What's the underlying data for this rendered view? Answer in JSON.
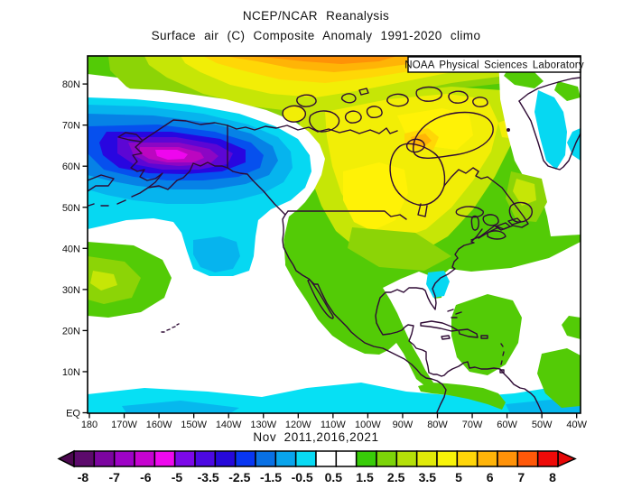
{
  "header": {
    "title": "NCEP/NCAR Reanalysis",
    "subtitle": "Surface air (C) Composite Anomaly 1991-2020 climo",
    "credit": "NOAA Physical Sciences Laboratory"
  },
  "caption": "Nov 2011,2016,2021",
  "axes": {
    "lat_labels": [
      "EQ",
      "10N",
      "20N",
      "30N",
      "40N",
      "50N",
      "60N",
      "70N",
      "80N"
    ],
    "lon_labels": [
      "180",
      "170W",
      "160W",
      "150W",
      "140W",
      "130W",
      "120W",
      "110W",
      "100W",
      "90W",
      "80W",
      "70W",
      "60W",
      "50W",
      "40W"
    ]
  },
  "colorbar": {
    "tick_labels": [
      "-8",
      "-7",
      "-6",
      "-5",
      "-3.5",
      "-2.5",
      "-1.5",
      "-0.5",
      "0.5",
      "1.5",
      "2.5",
      "3.5",
      "5",
      "6",
      "7",
      "8"
    ],
    "left_arrow_color": "#4c0850",
    "right_arrow_color": "#e60808",
    "cell_colors": [
      "#5c0a6c",
      "#7c05a0",
      "#9e03c6",
      "#c603d0",
      "#ee08ee",
      "#7c08e8",
      "#4c08e2",
      "#2608da",
      "#0836f2",
      "#0870e4",
      "#08a4ec",
      "#08daf4",
      "#ffffff",
      "#ffffff",
      "#38cc08",
      "#7cd408",
      "#b4e008",
      "#e0ea08",
      "#f8f408",
      "#ffd608",
      "#ffb408",
      "#ff9208",
      "#ff5808",
      "#ee0a08"
    ]
  },
  "palette": {
    "land_outline": "#2e0a34",
    "green_base": "#53cb06",
    "green_light": "#8cd406",
    "yellow_green": "#c6e606",
    "yellow": "#f2ee06",
    "yellow_bright": "#fff206",
    "gold": "#ffd706",
    "orange": "#ffb406",
    "orange_deep": "#ff9206",
    "cyan": "#06d8f2",
    "magenta_core": "#ee06ee"
  },
  "chart_data": {
    "type": "heatmap",
    "title": "NCEP/NCAR Reanalysis",
    "subtitle": "Surface air (C) Composite Anomaly 1991-2020 climo",
    "variable": "Surface air temperature anomaly",
    "units": "C",
    "composite": {
      "month": "Nov",
      "years": [
        2011,
        2016,
        2021
      ],
      "climatology": "1991-2020"
    },
    "xlabel_ticks": [
      "180",
      "170W",
      "160W",
      "150W",
      "140W",
      "130W",
      "120W",
      "110W",
      "100W",
      "90W",
      "80W",
      "70W",
      "60W",
      "50W",
      "40W"
    ],
    "ylabel_ticks": [
      "EQ",
      "10N",
      "20N",
      "30N",
      "40N",
      "50N",
      "60N",
      "70N",
      "80N"
    ],
    "colorbar_ticks": [
      -8,
      -7,
      -6,
      -5,
      -3.5,
      -2.5,
      -1.5,
      -0.5,
      0.5,
      1.5,
      2.5,
      3.5,
      5,
      6,
      7,
      8
    ],
    "legend_position": "bottom",
    "features": [
      {
        "region": "Alaska interior",
        "anomaly_c": -4.5,
        "note": "strong cold core, magenta/purple bullseye"
      },
      {
        "region": "Bering Sea / Gulf of Alaska / NE Pacific",
        "anomaly_c": -1,
        "note": "broad cyan-blue cold pool"
      },
      {
        "region": "Arctic along top of map",
        "anomaly_c": 5.5,
        "note": "orange-yellow warm band, max near 130-110W"
      },
      {
        "region": "west of Hudson Bay",
        "anomaly_c": 4,
        "note": "small orange spot"
      },
      {
        "region": "central Canada / northern US plains",
        "anomaly_c": 3,
        "note": "yellow ridge"
      },
      {
        "region": "most of North America",
        "anomaly_c": 1.5,
        "note": "green positive anomaly"
      },
      {
        "region": "Greenland ice sheet",
        "anomaly_c": -1,
        "note": "cyan stripe"
      },
      {
        "region": "equatorial Pacific",
        "anomaly_c": -1,
        "note": "cyan La Nina cool band along EQ"
      },
      {
        "region": "subtropical Pacific and Atlantic oceans",
        "anomaly_c": 0,
        "note": "white near-zero areas"
      },
      {
        "region": "Caribbean / tropical Atlantic patches",
        "anomaly_c": 1,
        "note": "scattered green blobs"
      }
    ]
  }
}
